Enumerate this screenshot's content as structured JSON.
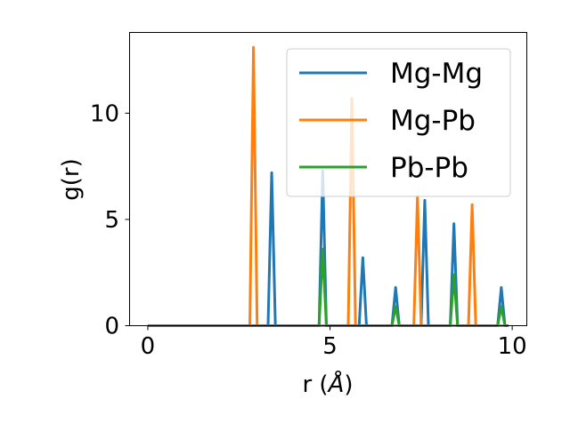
{
  "chart_data": {
    "type": "line",
    "xlabel": "r (Å)",
    "xlabel_prefix": "r (",
    "xlabel_symbol": "Å",
    "xlabel_suffix": ")",
    "ylabel": "g(r)",
    "xlim": [
      -0.5,
      10.4
    ],
    "ylim": [
      0,
      13.8
    ],
    "xticks": [
      0,
      5,
      10
    ],
    "yticks": [
      0,
      5,
      10
    ],
    "grid": false,
    "legend_position": "top-right",
    "series": [
      {
        "name": "Mg-Mg",
        "color": "#1f77b4",
        "points": [
          [
            0,
            0
          ],
          [
            3.3,
            0
          ],
          [
            3.4,
            7.2
          ],
          [
            3.5,
            0
          ],
          [
            4.7,
            0
          ],
          [
            4.8,
            7.3
          ],
          [
            4.9,
            0
          ],
          [
            5.8,
            0
          ],
          [
            5.9,
            3.2
          ],
          [
            6.0,
            0
          ],
          [
            6.7,
            0
          ],
          [
            6.8,
            1.8
          ],
          [
            6.9,
            0
          ],
          [
            7.5,
            0
          ],
          [
            7.6,
            5.9
          ],
          [
            7.7,
            0
          ],
          [
            8.3,
            0
          ],
          [
            8.4,
            4.8
          ],
          [
            8.5,
            0
          ],
          [
            9.6,
            0
          ],
          [
            9.7,
            1.8
          ],
          [
            9.8,
            0
          ],
          [
            9.9,
            0
          ]
        ]
      },
      {
        "name": "Mg-Pb",
        "color": "#ff7f0e",
        "points": [
          [
            0,
            0
          ],
          [
            2.8,
            0
          ],
          [
            2.9,
            13.1
          ],
          [
            3.0,
            0
          ],
          [
            5.5,
            0
          ],
          [
            5.6,
            10.7
          ],
          [
            5.7,
            0
          ],
          [
            7.3,
            0
          ],
          [
            7.4,
            6.1
          ],
          [
            7.5,
            0
          ],
          [
            8.8,
            0
          ],
          [
            8.9,
            5.7
          ],
          [
            9.0,
            0
          ],
          [
            9.9,
            0
          ]
        ]
      },
      {
        "name": "Pb-Pb",
        "color": "#2ca02c",
        "points": [
          [
            0,
            0
          ],
          [
            4.7,
            0
          ],
          [
            4.8,
            3.6
          ],
          [
            4.9,
            0
          ],
          [
            6.7,
            0
          ],
          [
            6.8,
            0.9
          ],
          [
            6.9,
            0
          ],
          [
            8.3,
            0
          ],
          [
            8.4,
            2.4
          ],
          [
            8.5,
            0
          ],
          [
            9.6,
            0
          ],
          [
            9.7,
            0.9
          ],
          [
            9.8,
            0
          ],
          [
            9.9,
            0
          ]
        ]
      }
    ]
  }
}
